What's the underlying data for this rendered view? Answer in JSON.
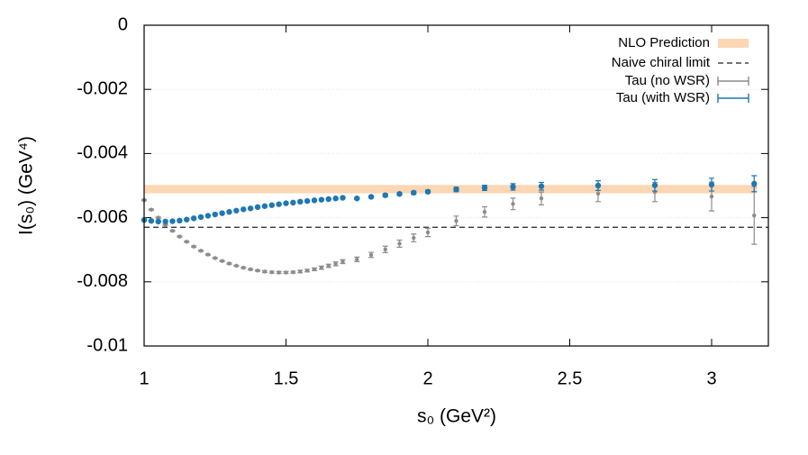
{
  "chart_data": {
    "type": "scatter",
    "xlabel": "s₀ (GeV²)",
    "ylabel": "I(s₀) (GeV⁴)",
    "xlim": [
      1,
      3.2
    ],
    "xticks": [
      1,
      1.5,
      2,
      2.5,
      3
    ],
    "ylim": [
      -0.01,
      0
    ],
    "yticks": [
      -0.01,
      -0.008,
      -0.006,
      -0.004,
      -0.002,
      0
    ],
    "grid": true,
    "legend": "upper right",
    "bands": [
      {
        "name": "NLO Prediction",
        "color": "#fdd6b3",
        "range": [
          -0.00524,
          -0.00498
        ],
        "x": [
          1,
          3.16
        ]
      }
    ],
    "hlines": [
      {
        "name": "Naive chiral limit",
        "color": "#222222",
        "value": -0.0063,
        "style": "dashed"
      }
    ],
    "x": [
      1.0,
      1.025,
      1.05,
      1.075,
      1.1,
      1.125,
      1.15,
      1.175,
      1.2,
      1.225,
      1.25,
      1.275,
      1.3,
      1.325,
      1.35,
      1.375,
      1.4,
      1.425,
      1.45,
      1.475,
      1.5,
      1.525,
      1.55,
      1.575,
      1.6,
      1.625,
      1.65,
      1.675,
      1.7,
      1.75,
      1.8,
      1.85,
      1.9,
      1.95,
      2.0,
      2.1,
      2.2,
      2.3,
      2.4,
      2.6,
      2.8,
      3.0,
      3.15
    ],
    "series": [
      {
        "name": "Tau (no WSR)",
        "color": "#8c8c8c",
        "values": [
          -0.00545,
          -0.00575,
          -0.006,
          -0.00622,
          -0.00641,
          -0.00659,
          -0.00675,
          -0.0069,
          -0.00703,
          -0.00715,
          -0.00726,
          -0.00735,
          -0.00743,
          -0.0075,
          -0.00756,
          -0.00761,
          -0.00765,
          -0.00768,
          -0.0077,
          -0.00771,
          -0.00771,
          -0.0077,
          -0.00768,
          -0.00765,
          -0.00761,
          -0.00756,
          -0.0075,
          -0.00744,
          -0.00737,
          -0.0073,
          -0.00716,
          -0.00699,
          -0.00681,
          -0.00663,
          -0.00646,
          -0.0061,
          -0.00582,
          -0.00557,
          -0.0054,
          -0.00525,
          -0.0052,
          -0.00534,
          -0.00593
        ],
        "errors": [
          2e-05,
          2e-05,
          2e-05,
          2e-05,
          2e-05,
          2e-05,
          2e-05,
          2e-05,
          2e-05,
          2e-05,
          2e-05,
          2e-05,
          2e-05,
          2e-05,
          2e-05,
          2e-05,
          2e-05,
          3e-05,
          3e-05,
          3e-05,
          3e-05,
          3e-05,
          4e-05,
          4e-05,
          4e-05,
          5e-05,
          5e-05,
          6e-05,
          6e-05,
          7e-05,
          8e-05,
          0.0001,
          0.00011,
          0.00012,
          0.00013,
          0.00015,
          0.00016,
          0.00018,
          0.0002,
          0.00025,
          0.0003,
          0.00045,
          0.0009
        ]
      },
      {
        "name": "Tau (with WSR)",
        "color": "#1f77b4",
        "values": [
          -0.00607,
          -0.0061,
          -0.00612,
          -0.00612,
          -0.00611,
          -0.00609,
          -0.00606,
          -0.00602,
          -0.00598,
          -0.00594,
          -0.0059,
          -0.00586,
          -0.00582,
          -0.00578,
          -0.00574,
          -0.00571,
          -0.00567,
          -0.00564,
          -0.00561,
          -0.00558,
          -0.00555,
          -0.00553,
          -0.0055,
          -0.00548,
          -0.00546,
          -0.00544,
          -0.00542,
          -0.0054,
          -0.00538,
          -0.0054,
          -0.00535,
          -0.0053,
          -0.00526,
          -0.00522,
          -0.00519,
          -0.00512,
          -0.00507,
          -0.00504,
          -0.00502,
          -0.005,
          -0.00499,
          -0.00497,
          -0.00494
        ],
        "errors": [
          2e-05,
          2e-05,
          2e-05,
          2e-05,
          2e-05,
          2e-05,
          2e-05,
          2e-05,
          2e-05,
          2e-05,
          2e-05,
          2e-05,
          2e-05,
          2e-05,
          2e-05,
          2e-05,
          2e-05,
          2e-05,
          2e-05,
          2e-05,
          2e-05,
          2e-05,
          2e-05,
          2e-05,
          2e-05,
          2e-05,
          2e-05,
          2e-05,
          2e-05,
          3e-05,
          3e-05,
          4e-05,
          4e-05,
          5e-05,
          5e-05,
          7e-05,
          8e-05,
          0.0001,
          0.00012,
          0.00015,
          0.00018,
          0.0002,
          0.00025
        ]
      }
    ]
  }
}
